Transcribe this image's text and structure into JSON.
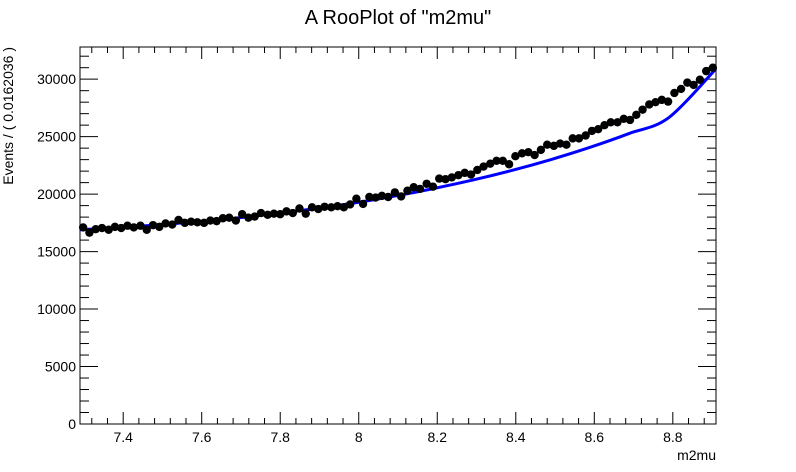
{
  "chart_data": {
    "type": "scatter",
    "title": "A RooPlot of \"m2mu\"",
    "xlabel": "m2mu",
    "ylabel": "Events / ( 0.0162036 )",
    "xlim": [
      7.29,
      8.91
    ],
    "ylim": [
      0,
      32800
    ],
    "x_ticks": [
      7.4,
      7.6,
      7.8,
      8.0,
      8.2,
      8.4,
      8.6,
      8.8
    ],
    "x_tick_labels": [
      "7.4",
      "7.6",
      "7.8",
      "8",
      "8.2",
      "8.4",
      "8.6",
      "8.8"
    ],
    "y_ticks": [
      0,
      5000,
      10000,
      15000,
      20000,
      25000,
      30000
    ],
    "y_tick_labels": [
      "0",
      "5000",
      "10000",
      "15000",
      "20000",
      "25000",
      "30000"
    ],
    "grid": false,
    "legend": "none",
    "series": [
      {
        "kind": "data-points",
        "color": "#000000",
        "x": [
          7.298,
          7.314,
          7.33,
          7.346,
          7.363,
          7.379,
          7.395,
          7.411,
          7.427,
          7.444,
          7.46,
          7.476,
          7.492,
          7.508,
          7.525,
          7.541,
          7.557,
          7.573,
          7.589,
          7.606,
          7.622,
          7.638,
          7.654,
          7.67,
          7.687,
          7.703,
          7.719,
          7.735,
          7.751,
          7.768,
          7.784,
          7.8,
          7.816,
          7.832,
          7.849,
          7.865,
          7.881,
          7.897,
          7.913,
          7.93,
          7.946,
          7.962,
          7.978,
          7.994,
          8.011,
          8.027,
          8.043,
          8.059,
          8.075,
          8.092,
          8.108,
          8.124,
          8.14,
          8.156,
          8.173,
          8.189,
          8.205,
          8.221,
          8.237,
          8.254,
          8.27,
          8.286,
          8.302,
          8.318,
          8.335,
          8.351,
          8.367,
          8.383,
          8.399,
          8.416,
          8.432,
          8.448,
          8.464,
          8.48,
          8.497,
          8.513,
          8.529,
          8.545,
          8.561,
          8.578,
          8.594,
          8.61,
          8.626,
          8.642,
          8.659,
          8.675,
          8.691,
          8.707,
          8.723,
          8.74,
          8.756,
          8.772,
          8.788,
          8.804,
          8.821,
          8.837,
          8.853,
          8.869,
          8.885,
          8.902
        ],
        "y": [
          17100,
          16650,
          16950,
          17050,
          16900,
          17150,
          17050,
          17250,
          17100,
          17250,
          16900,
          17300,
          17150,
          17450,
          17350,
          17750,
          17500,
          17600,
          17550,
          17500,
          17700,
          17650,
          17900,
          17950,
          17700,
          18250,
          17950,
          18050,
          18350,
          18200,
          18300,
          18250,
          18500,
          18350,
          18750,
          18300,
          18850,
          18700,
          18900,
          18850,
          18950,
          18850,
          19100,
          19600,
          19150,
          19750,
          19700,
          19850,
          19750,
          20150,
          19800,
          20300,
          20600,
          20450,
          20900,
          20650,
          21350,
          21300,
          21450,
          21650,
          21850,
          21700,
          22100,
          22400,
          22650,
          22900,
          22900,
          22600,
          23300,
          23550,
          23650,
          23400,
          23850,
          24300,
          24200,
          24400,
          24300,
          24850,
          24850,
          25100,
          25500,
          25650,
          26000,
          26250,
          26250,
          26550,
          26450,
          26900,
          27350,
          27800,
          28000,
          28200,
          28050,
          28800,
          29150,
          29700,
          29500,
          29950,
          30700,
          31000
        ]
      },
      {
        "kind": "fit-curve",
        "color": "#0000ff",
        "x": [
          7.29,
          7.39,
          7.49,
          7.59,
          7.69,
          7.79,
          7.89,
          7.99,
          8.09,
          8.19,
          8.29,
          8.39,
          8.49,
          8.59,
          8.69,
          8.79,
          8.91
        ],
        "y": [
          16900,
          17090,
          17330,
          17600,
          17920,
          18300,
          18740,
          19240,
          19820,
          20480,
          21220,
          22060,
          23010,
          24080,
          25290,
          26660,
          30900
        ]
      }
    ]
  }
}
